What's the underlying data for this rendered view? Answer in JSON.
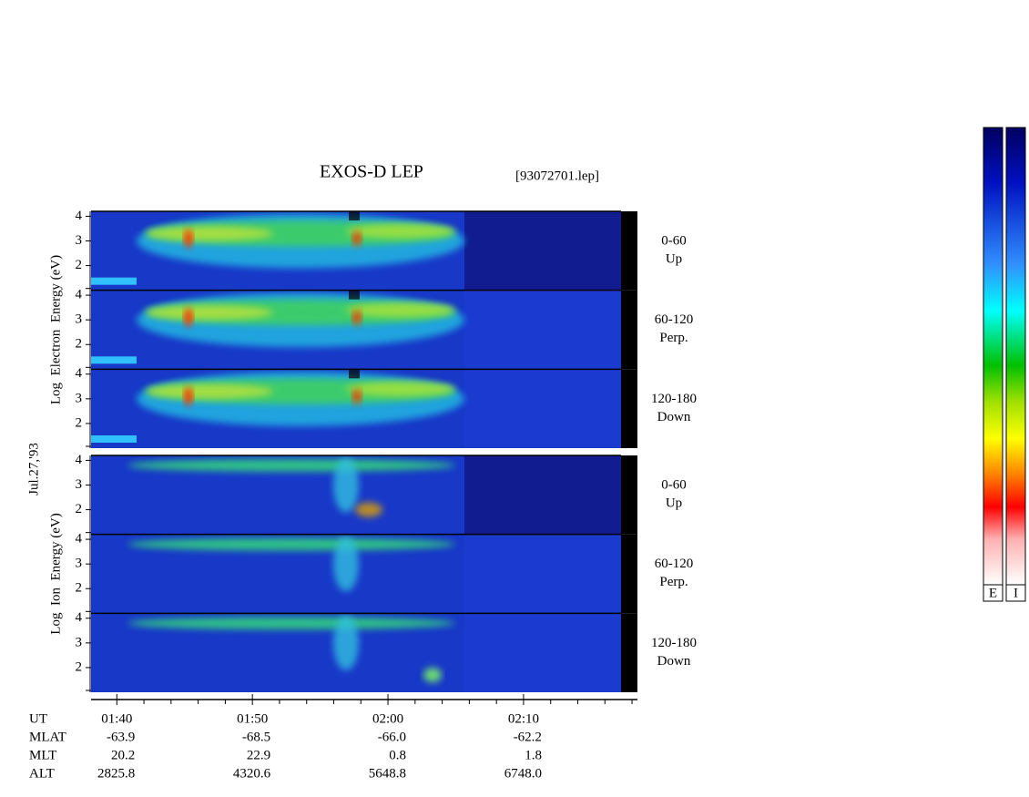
{
  "chart_data": {
    "type": "spectrogram",
    "title": "EXOS-D LEP",
    "file_label": "[93072701.lep]",
    "date_label": "Jul.27,'93",
    "ylim": [
      1,
      4.2
    ],
    "yticks": [
      2,
      3,
      4
    ],
    "groups": [
      {
        "ylabel": "Log  Electron  Energy (eV)",
        "panels": [
          {
            "angle": "0-60",
            "direction": "Up"
          },
          {
            "angle": "60-120",
            "direction": "Perp."
          },
          {
            "angle": "120-180",
            "direction": "Down"
          }
        ]
      },
      {
        "ylabel": "Log  Ion  Energy (eV)",
        "panels": [
          {
            "angle": "0-60",
            "direction": "Up"
          },
          {
            "angle": "60-120",
            "direction": "Perp."
          },
          {
            "angle": "120-180",
            "direction": "Down"
          }
        ]
      }
    ],
    "xlim": [
      38.1,
      78.4
    ],
    "xticks": [
      {
        "value": 40,
        "label": "01:40"
      },
      {
        "value": 50,
        "label": "01:50"
      },
      {
        "value": 60,
        "label": "02:00"
      },
      {
        "value": 70,
        "label": "02:10"
      }
    ],
    "xminor": [
      42,
      44,
      46,
      48,
      52,
      54,
      56,
      58,
      62,
      64,
      66,
      68,
      72,
      74,
      76,
      78
    ],
    "ephemeris": {
      "time_label": "UT",
      "labels": [
        "MLAT",
        "MLT",
        "ALT"
      ],
      "rows": [
        [
          "-63.9",
          "-68.5",
          "-66.0",
          "-62.2"
        ],
        [
          "20.2",
          "22.9",
          "0.8",
          "1.8"
        ],
        [
          "2825.8",
          "4320.6",
          "5648.8",
          "6748.0"
        ]
      ]
    },
    "colorbar_labels": [
      "E",
      "I"
    ]
  }
}
